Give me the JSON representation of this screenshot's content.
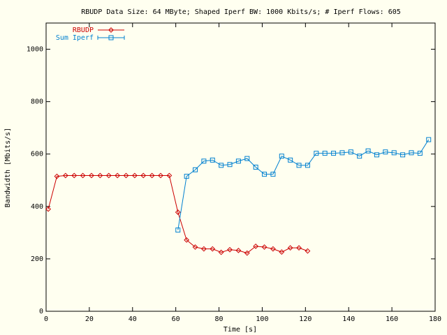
{
  "chart_data": {
    "type": "line",
    "title": "RBUDP Data Size: 64 MByte; Shaped Iperf BW: 1000 Kbits/s; # Iperf Flows: 605",
    "xlabel": "Time [s]",
    "ylabel": "Bandwidth [Mbits/s]",
    "xlim": [
      0,
      180
    ],
    "ylim": [
      0,
      1100
    ],
    "xticks": [
      0,
      20,
      40,
      60,
      80,
      100,
      120,
      140,
      160,
      180
    ],
    "yticks": [
      0,
      200,
      400,
      600,
      800,
      1000
    ],
    "grid": false,
    "legend_position": "top-left",
    "series": [
      {
        "name": "RBUDP",
        "color": "#cc0000",
        "marker": "diamond",
        "x": [
          1,
          5,
          9,
          13,
          17,
          21,
          25,
          29,
          33,
          37,
          41,
          45,
          49,
          53,
          57,
          61,
          65,
          69,
          73,
          77,
          81,
          85,
          89,
          93,
          97,
          101,
          105,
          109,
          113,
          117,
          121
        ],
        "y": [
          390,
          515,
          518,
          518,
          518,
          518,
          518,
          518,
          518,
          518,
          518,
          518,
          518,
          518,
          518,
          378,
          272,
          245,
          238,
          238,
          225,
          235,
          232,
          222,
          248,
          245,
          238,
          226,
          242,
          242,
          230
        ]
      },
      {
        "name": "Sum Iperf",
        "color": "#0080d0",
        "marker": "square",
        "x": [
          61,
          65,
          69,
          73,
          77,
          81,
          85,
          89,
          93,
          97,
          101,
          105,
          109,
          113,
          117,
          121,
          125,
          129,
          133,
          137,
          141,
          145,
          149,
          153,
          157,
          161,
          165,
          169,
          173,
          177
        ],
        "y": [
          310,
          515,
          540,
          573,
          577,
          557,
          560,
          573,
          583,
          550,
          523,
          523,
          592,
          577,
          557,
          557,
          603,
          603,
          603,
          605,
          608,
          592,
          612,
          597,
          608,
          605,
          597,
          605,
          603,
          655
        ]
      }
    ]
  }
}
